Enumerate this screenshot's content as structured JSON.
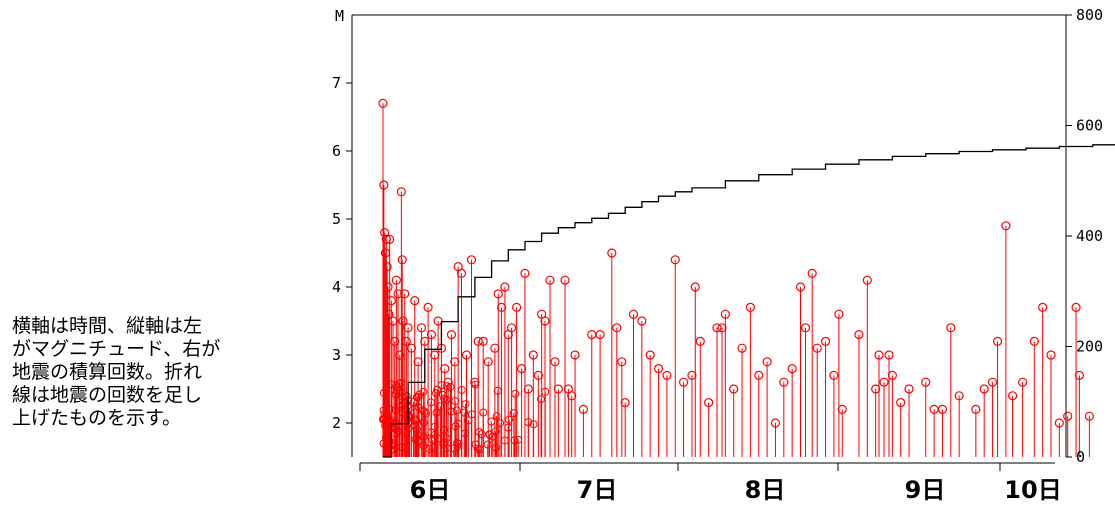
{
  "caption_lines": [
    "横軸は時間、縦軸は左",
    "がマグニチュード、右が",
    "地震の積算回数。折れ",
    "線は地震の回数を足し",
    "上げたものを示す。"
  ],
  "chart_data": {
    "type": "line",
    "title": "",
    "left_axis": {
      "label": "M",
      "ylim": [
        1.5,
        8
      ],
      "ticks": [
        "2",
        "3",
        "4",
        "5",
        "6",
        "7"
      ]
    },
    "right_axis": {
      "ylim": [
        0,
        800
      ],
      "ticks": [
        "0",
        "200",
        "400",
        "600",
        "800"
      ]
    },
    "x_axis": {
      "ticks": [
        "6日",
        "7日",
        "8日",
        "9日",
        "10日"
      ]
    },
    "grid": false,
    "legend": "none",
    "colors": {
      "magnitude": "#ff0000",
      "cumulative": "#000000",
      "axis": "#000000"
    },
    "cumulative_series": {
      "x": [
        0.15,
        0.2,
        0.3,
        0.4,
        0.5,
        0.6,
        0.7,
        0.8,
        0.9,
        1.0,
        1.1,
        1.2,
        1.3,
        1.4,
        1.5,
        1.6,
        1.7,
        1.8,
        1.9,
        2.0,
        2.2,
        2.4,
        2.6,
        2.8,
        3.0,
        3.2,
        3.4,
        3.6,
        3.8,
        4.0,
        4.2,
        4.4,
        4.6,
        4.8,
        4.88
      ],
      "y": [
        0,
        60,
        135,
        195,
        245,
        290,
        325,
        355,
        375,
        390,
        405,
        415,
        424,
        432,
        441,
        452,
        462,
        472,
        480,
        487,
        500,
        511,
        521,
        530,
        538,
        544,
        549,
        553,
        556,
        559,
        562,
        565,
        570,
        574,
        575
      ]
    },
    "magnitude_events": [
      [
        0.15,
        6.7
      ],
      [
        0.155,
        5.5
      ],
      [
        0.16,
        4.8
      ],
      [
        0.165,
        4.5
      ],
      [
        0.17,
        4.7
      ],
      [
        0.175,
        4.3
      ],
      [
        0.18,
        4.0
      ],
      [
        0.185,
        3.6
      ],
      [
        0.19,
        4.7
      ],
      [
        0.2,
        3.8
      ],
      [
        0.21,
        3.5
      ],
      [
        0.22,
        3.2
      ],
      [
        0.23,
        4.1
      ],
      [
        0.24,
        3.9
      ],
      [
        0.25,
        3.0
      ],
      [
        0.26,
        5.4
      ],
      [
        0.265,
        4.4
      ],
      [
        0.27,
        3.5
      ],
      [
        0.28,
        3.9
      ],
      [
        0.29,
        3.2
      ],
      [
        0.3,
        3.4
      ],
      [
        0.32,
        3.1
      ],
      [
        0.34,
        3.8
      ],
      [
        0.36,
        2.9
      ],
      [
        0.38,
        3.4
      ],
      [
        0.4,
        3.2
      ],
      [
        0.42,
        3.7
      ],
      [
        0.44,
        3.3
      ],
      [
        0.46,
        3.0
      ],
      [
        0.48,
        3.5
      ],
      [
        0.5,
        3.1
      ],
      [
        0.52,
        2.8
      ],
      [
        0.54,
        2.6
      ],
      [
        0.56,
        3.3
      ],
      [
        0.58,
        2.9
      ],
      [
        0.6,
        4.3
      ],
      [
        0.62,
        4.2
      ],
      [
        0.65,
        3.0
      ],
      [
        0.68,
        4.4
      ],
      [
        0.7,
        2.6
      ],
      [
        0.72,
        3.2
      ],
      [
        0.75,
        3.2
      ],
      [
        0.78,
        2.9
      ],
      [
        0.82,
        3.1
      ],
      [
        0.84,
        3.9
      ],
      [
        0.86,
        3.7
      ],
      [
        0.88,
        4.0
      ],
      [
        0.9,
        3.3
      ],
      [
        0.92,
        3.4
      ],
      [
        0.95,
        3.7
      ],
      [
        0.98,
        2.8
      ],
      [
        1.0,
        4.2
      ],
      [
        1.02,
        2.5
      ],
      [
        1.05,
        3.0
      ],
      [
        1.08,
        2.7
      ],
      [
        1.1,
        3.6
      ],
      [
        1.12,
        3.5
      ],
      [
        1.15,
        4.1
      ],
      [
        1.18,
        2.9
      ],
      [
        1.2,
        2.5
      ],
      [
        1.24,
        4.1
      ],
      [
        1.26,
        2.5
      ],
      [
        1.28,
        2.4
      ],
      [
        1.3,
        3.0
      ],
      [
        1.35,
        2.2
      ],
      [
        1.4,
        3.3
      ],
      [
        1.45,
        3.3
      ],
      [
        1.52,
        4.5
      ],
      [
        1.55,
        3.4
      ],
      [
        1.58,
        2.9
      ],
      [
        1.6,
        2.3
      ],
      [
        1.65,
        3.6
      ],
      [
        1.7,
        3.5
      ],
      [
        1.75,
        3.0
      ],
      [
        1.8,
        2.8
      ],
      [
        1.85,
        2.7
      ],
      [
        1.9,
        4.4
      ],
      [
        1.95,
        2.6
      ],
      [
        2.0,
        2.7
      ],
      [
        2.02,
        4.0
      ],
      [
        2.05,
        3.2
      ],
      [
        2.1,
        2.3
      ],
      [
        2.15,
        3.4
      ],
      [
        2.18,
        3.4
      ],
      [
        2.2,
        3.6
      ],
      [
        2.25,
        2.5
      ],
      [
        2.3,
        3.1
      ],
      [
        2.35,
        3.7
      ],
      [
        2.4,
        2.7
      ],
      [
        2.45,
        2.9
      ],
      [
        2.5,
        2.0
      ],
      [
        2.55,
        2.6
      ],
      [
        2.6,
        2.8
      ],
      [
        2.65,
        4.0
      ],
      [
        2.68,
        3.4
      ],
      [
        2.72,
        4.2
      ],
      [
        2.75,
        3.1
      ],
      [
        2.8,
        3.2
      ],
      [
        2.85,
        2.7
      ],
      [
        2.88,
        3.6
      ],
      [
        2.9,
        2.2
      ],
      [
        3.0,
        3.3
      ],
      [
        3.05,
        4.1
      ],
      [
        3.1,
        2.5
      ],
      [
        3.12,
        3.0
      ],
      [
        3.15,
        2.6
      ],
      [
        3.18,
        3.0
      ],
      [
        3.2,
        2.7
      ],
      [
        3.25,
        2.3
      ],
      [
        3.3,
        2.5
      ],
      [
        3.4,
        2.6
      ],
      [
        3.45,
        2.2
      ],
      [
        3.5,
        2.2
      ],
      [
        3.55,
        3.4
      ],
      [
        3.6,
        2.4
      ],
      [
        3.7,
        2.2
      ],
      [
        3.75,
        2.5
      ],
      [
        3.8,
        2.6
      ],
      [
        3.83,
        3.2
      ],
      [
        3.88,
        4.9
      ],
      [
        3.92,
        2.4
      ],
      [
        3.98,
        2.6
      ],
      [
        4.05,
        3.2
      ],
      [
        4.1,
        3.7
      ],
      [
        4.15,
        3.0
      ],
      [
        4.2,
        2.0
      ],
      [
        4.25,
        2.1
      ],
      [
        4.3,
        3.7
      ],
      [
        4.32,
        2.7
      ],
      [
        4.38,
        2.1
      ]
    ],
    "dense_cluster": {
      "x_range": [
        0.15,
        1.2
      ],
      "count": 140,
      "m_range": [
        1.6,
        2.6
      ]
    }
  }
}
